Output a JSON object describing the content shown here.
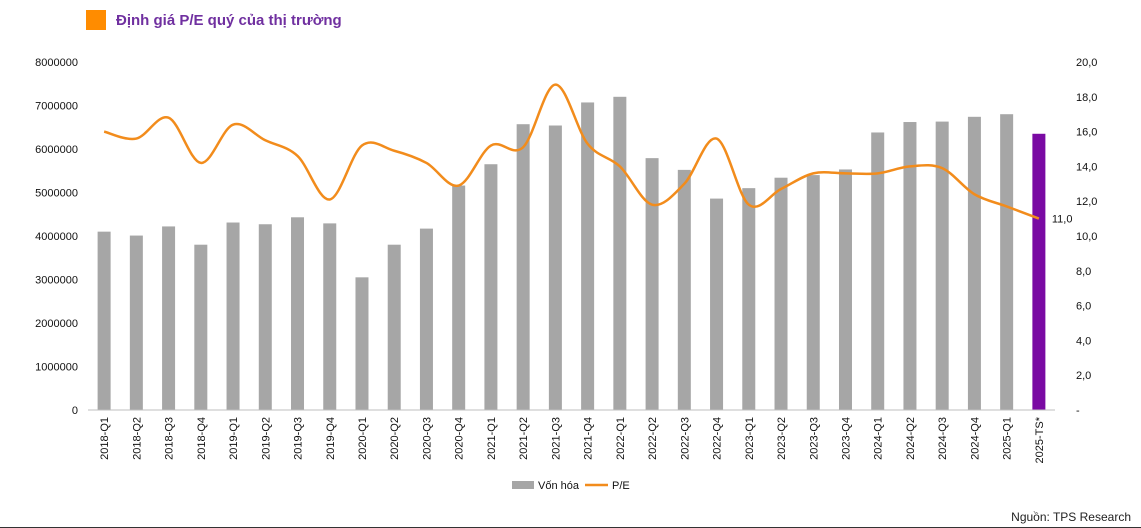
{
  "header": {
    "title": "Định giá P/E quý của thị trường"
  },
  "source": "Nguồn: TPS Research",
  "colors": {
    "title_text": "#7030a0",
    "title_swatch": "#ff8c00",
    "bar": "#a6a6a6",
    "bar_highlight": "#7a0aa3",
    "line": "#f28c1c"
  },
  "chart_data": {
    "type": "bar",
    "title": "Định giá P/E quý của thị trường",
    "categories": [
      "2018-Q1",
      "2018-Q2",
      "2018-Q3",
      "2018-Q4",
      "2019-Q1",
      "2019-Q2",
      "2019-Q3",
      "2019-Q4",
      "2020-Q1",
      "2020-Q2",
      "2020-Q3",
      "2020-Q4",
      "2021-Q1",
      "2021-Q2",
      "2021-Q3",
      "2021-Q4",
      "2022-Q1",
      "2022-Q2",
      "2022-Q3",
      "2022-Q4",
      "2023-Q1",
      "2023-Q2",
      "2023-Q3",
      "2023-Q4",
      "2024-Q1",
      "2024-Q2",
      "2024-Q3",
      "2024-Q4",
      "2025-Q1",
      "2025-TS*"
    ],
    "series": [
      {
        "name": "Vốn hóa",
        "type": "bar",
        "axis": "left",
        "values": [
          4100000,
          4010000,
          4220000,
          3800000,
          4310000,
          4270000,
          4430000,
          4290000,
          3050000,
          3800000,
          4170000,
          5160000,
          5650000,
          6570000,
          6540000,
          7070000,
          7200000,
          5790000,
          5520000,
          4860000,
          5100000,
          5340000,
          5400000,
          5530000,
          6380000,
          6620000,
          6630000,
          6740000,
          6800000,
          6350000
        ],
        "highlight_index": 29
      },
      {
        "name": "P/E",
        "type": "line",
        "axis": "right",
        "values": [
          16.0,
          15.6,
          16.8,
          14.2,
          16.4,
          15.5,
          14.6,
          12.1,
          15.2,
          14.9,
          14.2,
          12.9,
          15.2,
          15.1,
          18.7,
          15.3,
          14.0,
          11.8,
          13.0,
          15.6,
          11.8,
          12.7,
          13.6,
          13.6,
          13.6,
          14.0,
          13.9,
          12.4,
          11.7,
          11.0
        ]
      }
    ],
    "y_left": {
      "min": 0,
      "max": 8000000,
      "ticks": [
        "0",
        "1000000",
        "2000000",
        "3000000",
        "4000000",
        "5000000",
        "6000000",
        "7000000",
        "8000000"
      ]
    },
    "y_right": {
      "min": 0,
      "max": 20,
      "ticks": [
        "-",
        "2,0",
        "4,0",
        "6,0",
        "8,0",
        "10,0",
        "12,0",
        "14,0",
        "16,0",
        "18,0",
        "20,0"
      ]
    },
    "annotation": {
      "index": 29,
      "text": "11,0"
    },
    "legend": {
      "placement": "bottom",
      "items": [
        "Vốn hóa",
        "P/E"
      ]
    },
    "grid": false
  }
}
